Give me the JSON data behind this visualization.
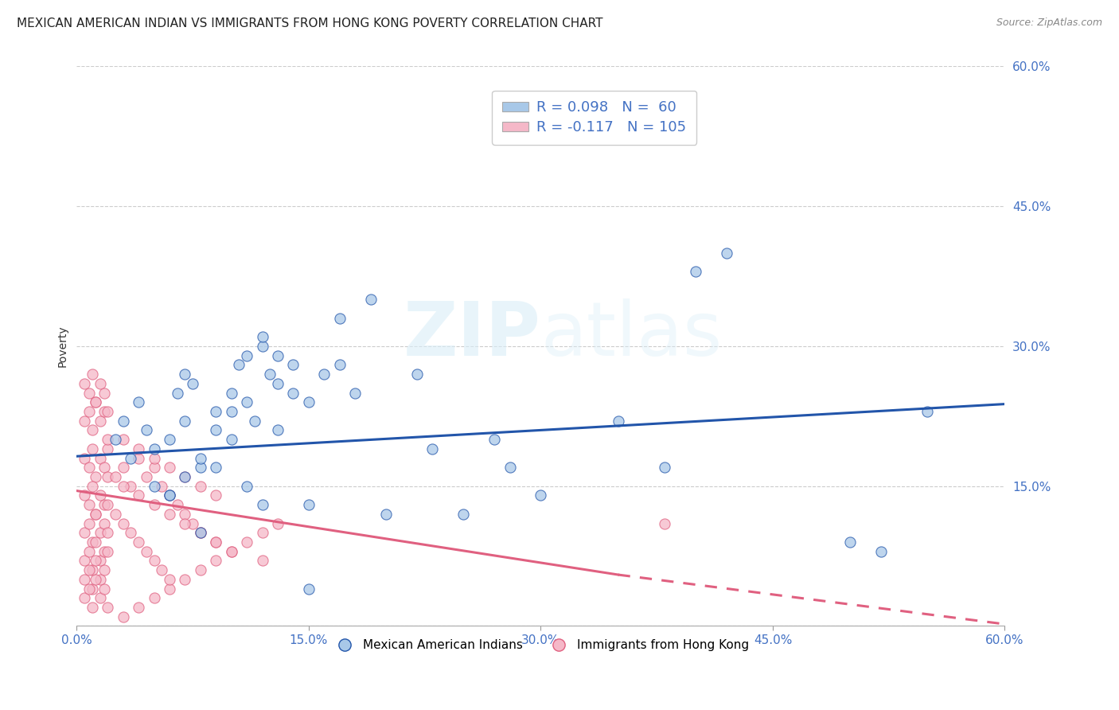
{
  "title": "MEXICAN AMERICAN INDIAN VS IMMIGRANTS FROM HONG KONG POVERTY CORRELATION CHART",
  "source": "Source: ZipAtlas.com",
  "ylabel": "Poverty",
  "xlim": [
    0.0,
    0.6
  ],
  "ylim": [
    0.0,
    0.6
  ],
  "xticklabels": [
    "0.0%",
    "15.0%",
    "30.0%",
    "45.0%",
    "60.0%"
  ],
  "yticklabels": [
    "",
    "15.0%",
    "30.0%",
    "45.0%",
    "60.0%"
  ],
  "watermark_zip": "ZIP",
  "watermark_atlas": "atlas",
  "blue_color": "#a8c8e8",
  "pink_color": "#f5b8c8",
  "blue_line_color": "#2255aa",
  "pink_line_color": "#e06080",
  "legend_line1": "R = 0.098   N =  60",
  "legend_line2": "R = -0.117   N = 105",
  "label1": "Mexican American Indians",
  "label2": "Immigrants from Hong Kong",
  "blue_scatter_x": [
    0.025,
    0.03,
    0.035,
    0.04,
    0.045,
    0.05,
    0.06,
    0.065,
    0.07,
    0.075,
    0.08,
    0.09,
    0.1,
    0.105,
    0.11,
    0.115,
    0.12,
    0.125,
    0.13,
    0.14,
    0.15,
    0.16,
    0.17,
    0.18,
    0.06,
    0.07,
    0.08,
    0.09,
    0.1,
    0.11,
    0.12,
    0.13,
    0.14,
    0.15,
    0.17,
    0.19,
    0.22,
    0.25,
    0.27,
    0.3,
    0.35,
    0.4,
    0.42,
    0.5,
    0.52,
    0.11,
    0.12,
    0.13,
    0.09,
    0.1,
    0.07,
    0.08,
    0.06,
    0.05,
    0.2,
    0.23,
    0.28,
    0.15,
    0.38,
    0.55
  ],
  "blue_scatter_y": [
    0.2,
    0.22,
    0.18,
    0.24,
    0.21,
    0.19,
    0.2,
    0.25,
    0.27,
    0.26,
    0.17,
    0.23,
    0.25,
    0.28,
    0.29,
    0.22,
    0.3,
    0.27,
    0.26,
    0.25,
    0.24,
    0.27,
    0.28,
    0.25,
    0.14,
    0.16,
    0.18,
    0.17,
    0.2,
    0.24,
    0.31,
    0.29,
    0.28,
    0.13,
    0.33,
    0.35,
    0.27,
    0.12,
    0.2,
    0.14,
    0.22,
    0.38,
    0.4,
    0.09,
    0.08,
    0.15,
    0.13,
    0.21,
    0.21,
    0.23,
    0.22,
    0.1,
    0.14,
    0.15,
    0.12,
    0.19,
    0.17,
    0.04,
    0.17,
    0.23
  ],
  "pink_scatter_x": [
    0.005,
    0.008,
    0.01,
    0.012,
    0.015,
    0.018,
    0.02,
    0.005,
    0.008,
    0.01,
    0.012,
    0.015,
    0.018,
    0.02,
    0.005,
    0.008,
    0.01,
    0.012,
    0.015,
    0.018,
    0.02,
    0.005,
    0.008,
    0.01,
    0.012,
    0.015,
    0.018,
    0.02,
    0.005,
    0.008,
    0.01,
    0.012,
    0.015,
    0.018,
    0.02,
    0.005,
    0.008,
    0.01,
    0.012,
    0.015,
    0.018,
    0.02,
    0.005,
    0.008,
    0.01,
    0.012,
    0.015,
    0.018,
    0.02,
    0.005,
    0.008,
    0.01,
    0.012,
    0.015,
    0.018,
    0.02,
    0.025,
    0.03,
    0.035,
    0.04,
    0.045,
    0.05,
    0.055,
    0.06,
    0.065,
    0.07,
    0.075,
    0.08,
    0.09,
    0.1,
    0.12,
    0.03,
    0.04,
    0.05,
    0.06,
    0.07,
    0.08,
    0.09,
    0.1,
    0.11,
    0.12,
    0.13,
    0.03,
    0.04,
    0.05,
    0.06,
    0.07,
    0.08,
    0.09,
    0.03,
    0.04,
    0.05,
    0.06,
    0.07,
    0.08,
    0.09,
    0.025,
    0.03,
    0.035,
    0.04,
    0.045,
    0.05,
    0.055,
    0.06,
    0.38
  ],
  "pink_scatter_y": [
    0.18,
    0.17,
    0.19,
    0.16,
    0.18,
    0.17,
    0.19,
    0.14,
    0.13,
    0.15,
    0.12,
    0.14,
    0.13,
    0.16,
    0.1,
    0.11,
    0.09,
    0.12,
    0.1,
    0.11,
    0.13,
    0.07,
    0.08,
    0.06,
    0.09,
    0.07,
    0.08,
    0.1,
    0.05,
    0.06,
    0.04,
    0.07,
    0.05,
    0.06,
    0.08,
    0.22,
    0.23,
    0.21,
    0.24,
    0.22,
    0.23,
    0.2,
    0.26,
    0.25,
    0.27,
    0.24,
    0.26,
    0.25,
    0.23,
    0.03,
    0.04,
    0.02,
    0.05,
    0.03,
    0.04,
    0.02,
    0.16,
    0.17,
    0.15,
    0.18,
    0.16,
    0.17,
    0.15,
    0.14,
    0.13,
    0.12,
    0.11,
    0.1,
    0.09,
    0.08,
    0.07,
    0.01,
    0.02,
    0.03,
    0.04,
    0.05,
    0.06,
    0.07,
    0.08,
    0.09,
    0.1,
    0.11,
    0.15,
    0.14,
    0.13,
    0.12,
    0.11,
    0.1,
    0.09,
    0.2,
    0.19,
    0.18,
    0.17,
    0.16,
    0.15,
    0.14,
    0.12,
    0.11,
    0.1,
    0.09,
    0.08,
    0.07,
    0.06,
    0.05,
    0.11
  ],
  "blue_trendline": [
    [
      0.0,
      0.6
    ],
    [
      0.182,
      0.238
    ]
  ],
  "pink_trendline_solid": [
    [
      0.0,
      0.35
    ],
    [
      0.145,
      0.055
    ]
  ],
  "pink_trendline_dashed": [
    [
      0.35,
      0.6
    ],
    [
      0.055,
      0.002
    ]
  ],
  "background_color": "#ffffff",
  "grid_color": "#cccccc",
  "tick_color": "#4472C4",
  "title_fontsize": 11,
  "axis_label_fontsize": 10,
  "legend_fontsize": 13,
  "tick_fontsize": 11
}
